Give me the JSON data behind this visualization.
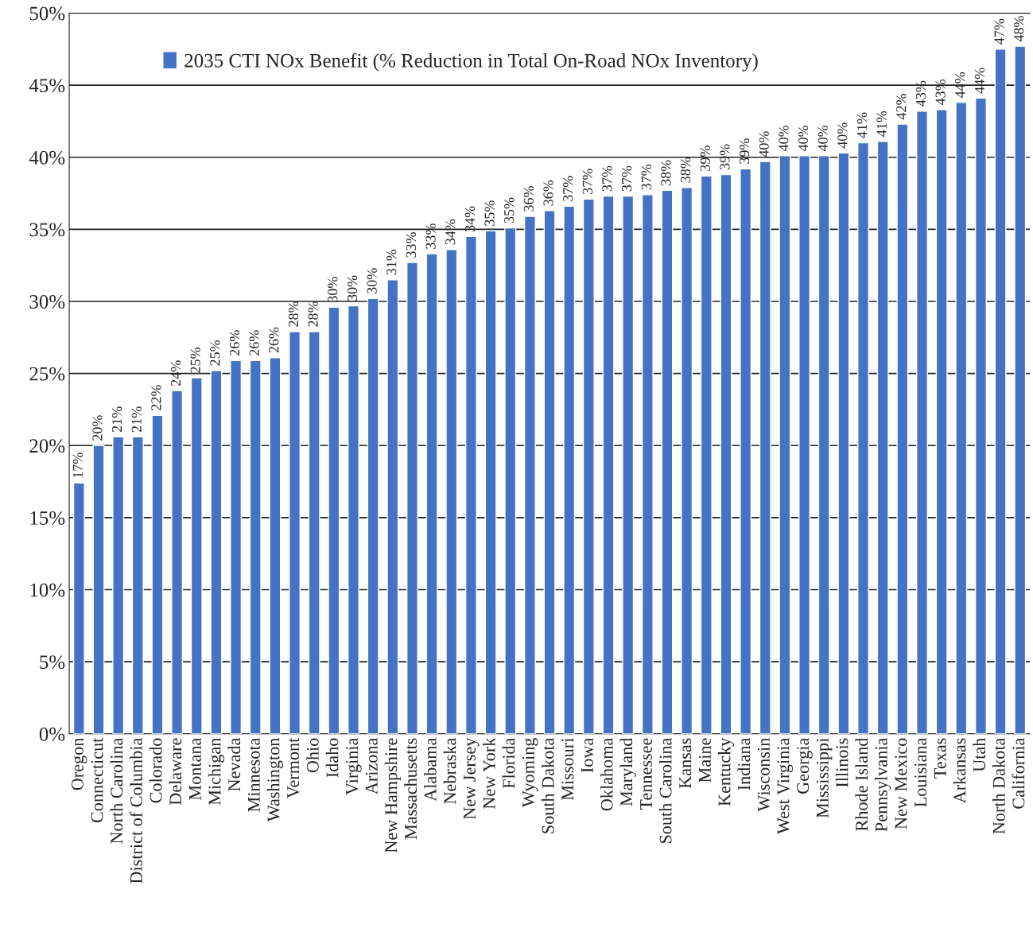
{
  "chart_data": {
    "type": "bar",
    "categories": [
      "Oregon",
      "Connecticut",
      "North Carolina",
      "District of Columbia",
      "Colorado",
      "Delaware",
      "Montana",
      "Michigan",
      "Nevada",
      "Minnesota",
      "Washington",
      "Vermont",
      "Ohio",
      "Idaho",
      "Virginia",
      "Arizona",
      "New Hampshire",
      "Massachusetts",
      "Alabama",
      "Nebraska",
      "New Jersey",
      "New York",
      "Florida",
      "Wyoming",
      "South Dakota",
      "Missouri",
      "Iowa",
      "Oklahoma",
      "Maryland",
      "Tennessee",
      "South Carolina",
      "Kansas",
      "Maine",
      "Kentucky",
      "Indiana",
      "Wisconsin",
      "West Virginia",
      "Georgia",
      "Mississippi",
      "Illinois",
      "Rhode Island",
      "Pennsylvania",
      "New Mexico",
      "Louisiana",
      "Texas",
      "Arkansas",
      "Utah",
      "North Dakota",
      "California"
    ],
    "series": [
      {
        "name": "2035 CTI NOx Benefit (% Reduction in Total On-Road NOx Inventory)",
        "color": "#4472c4",
        "values": [
          17.4,
          20.0,
          20.6,
          20.6,
          22.1,
          23.8,
          24.7,
          25.2,
          25.9,
          25.9,
          26.1,
          27.9,
          27.9,
          29.6,
          29.7,
          30.2,
          31.5,
          32.7,
          33.3,
          33.6,
          34.5,
          34.9,
          35.1,
          35.9,
          36.3,
          36.6,
          37.1,
          37.3,
          37.3,
          37.4,
          37.7,
          37.9,
          38.7,
          38.8,
          39.2,
          39.7,
          40.1,
          40.1,
          40.1,
          40.3,
          41.0,
          41.1,
          42.3,
          43.2,
          43.3,
          43.8,
          44.1,
          47.5,
          47.7
        ],
        "value_labels": [
          "17%",
          "20%",
          "21%",
          "21%",
          "22%",
          "24%",
          "25%",
          "25%",
          "26%",
          "26%",
          "26%",
          "28%",
          "28%",
          "30%",
          "30%",
          "30%",
          "31%",
          "33%",
          "33%",
          "34%",
          "34%",
          "35%",
          "35%",
          "36%",
          "36%",
          "37%",
          "37%",
          "37%",
          "37%",
          "37%",
          "38%",
          "38%",
          "39%",
          "39%",
          "39%",
          "40%",
          "40%",
          "40%",
          "40%",
          "40%",
          "41%",
          "41%",
          "42%",
          "43%",
          "43%",
          "44%",
          "44%",
          "47%",
          "48%"
        ]
      }
    ],
    "ylim": [
      0,
      50
    ],
    "yticks": [
      {
        "value": 0,
        "label": "0%"
      },
      {
        "value": 5,
        "label": "5%"
      },
      {
        "value": 10,
        "label": "10%"
      },
      {
        "value": 15,
        "label": "15%"
      },
      {
        "value": 20,
        "label": "20%"
      },
      {
        "value": 25,
        "label": "25%"
      },
      {
        "value": 30,
        "label": "30%"
      },
      {
        "value": 35,
        "label": "35%"
      },
      {
        "value": 40,
        "label": "40%"
      },
      {
        "value": 45,
        "label": "45%"
      },
      {
        "value": 50,
        "label": "50%"
      }
    ],
    "grid": "y",
    "legend": "top left"
  }
}
